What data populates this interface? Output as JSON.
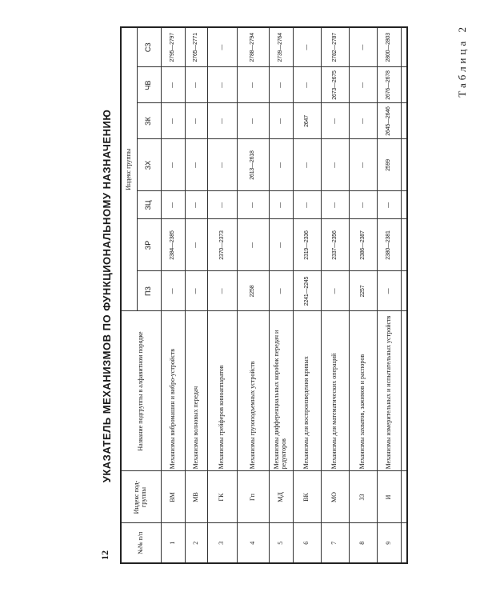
{
  "page_number": "12",
  "table_label": "Таблица 2",
  "title": "УКАЗАТЕЛЬ МЕХАНИЗМОВ ПО ФУНКЦИОНАЛЬНОМУ НАЗНАЧЕНИЮ",
  "header": {
    "num": "№№ п/п",
    "subgroup_index": "Индекс под-группы",
    "subgroup_name": "Название подгруппы в алфавитном порядке",
    "group_index": "Индекс группы",
    "groups": [
      "ПЗ",
      "ЗР",
      "ЗЦ",
      "ЗХ",
      "ЗК",
      "ЧВ",
      "СЗ"
    ]
  },
  "rows": [
    {
      "num": "1",
      "index": "ВМ",
      "name": "Механизмы вибромашин и вибро-устройств",
      "values": [
        "—",
        "2384—2385",
        "—",
        "—",
        "—",
        "—",
        "2795—2797"
      ]
    },
    {
      "num": "2",
      "index": "МВ",
      "name": "Механизмы волновых передач",
      "values": [
        "—",
        "—",
        "—",
        "—",
        "—",
        "—",
        "2765—2771"
      ]
    },
    {
      "num": "3",
      "index": "ГК",
      "name": "Механизмы грейферов киноаппаратов",
      "values": [
        "—",
        "2370—2373",
        "—",
        "—",
        "—",
        "—",
        "—"
      ]
    },
    {
      "num": "4",
      "index": "Гп",
      "name": "Механизмы грузоподъемных устройств",
      "values": [
        "2258",
        "—",
        "—",
        "2613—2618",
        "—",
        "—",
        "2788—2794"
      ]
    },
    {
      "num": "5",
      "index": "МД",
      "name": "Механизмы дифференциальных коробок передач и редукторов",
      "values": [
        "—",
        "—",
        "—",
        "—",
        "—",
        "—",
        "2739—2764"
      ]
    },
    {
      "num": "6",
      "index": "ВК",
      "name": "Механизмы для воспроизведения кривых",
      "values": [
        "2241—2245",
        "2319—2336",
        "—",
        "—",
        "2647",
        "—",
        "—"
      ]
    },
    {
      "num": "7",
      "index": "МО",
      "name": "Механизмы для математических операций",
      "values": [
        "—",
        "2337—2356",
        "—",
        "—",
        "—",
        "2673—2675",
        "2782—2787"
      ]
    },
    {
      "num": "8",
      "index": "ЗЗ",
      "name": "Механизмы захватов, зажимов и распоров",
      "values": [
        "2257",
        "2386—2387",
        "—",
        "—",
        "—",
        "—",
        "—"
      ]
    },
    {
      "num": "9",
      "index": "И",
      "name": "Механизмы измерительных и испытательных устройств",
      "values": [
        "—",
        "2380—2381",
        "—",
        "2599",
        "2645—2646",
        "2676—2678",
        "2800—2803"
      ]
    }
  ]
}
